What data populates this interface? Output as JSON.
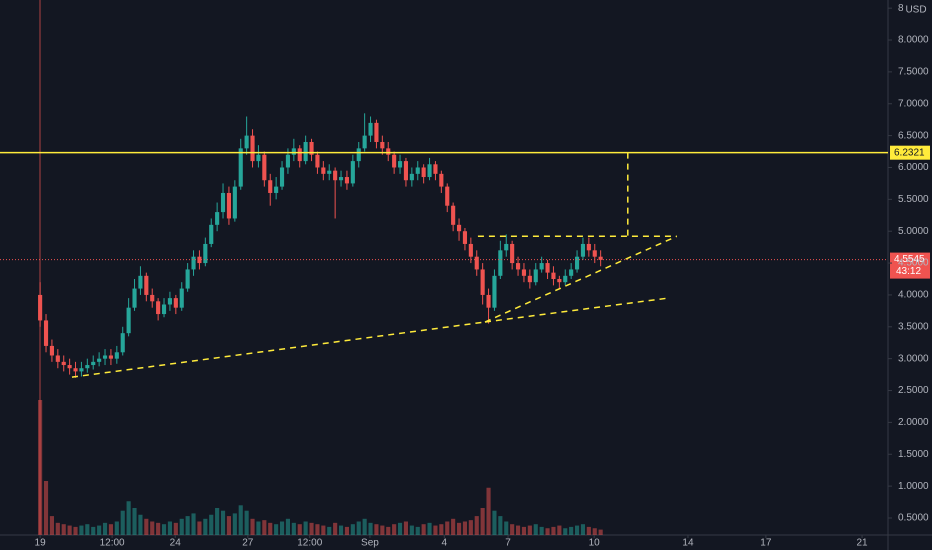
{
  "chart_data": {
    "type": "candlestick",
    "currency": "USD",
    "xlim": [
      -6.8,
      143.7
    ],
    "xticks": [
      {
        "value": 0,
        "label": "19"
      },
      {
        "value": 12.2,
        "label": "12:00"
      },
      {
        "value": 22.9,
        "label": "24"
      },
      {
        "value": 35.2,
        "label": "27"
      },
      {
        "value": 45.7,
        "label": "12:00"
      },
      {
        "value": 55.9,
        "label": "Sep"
      },
      {
        "value": 68.5,
        "label": "4"
      },
      {
        "value": 79.3,
        "label": "7"
      },
      {
        "value": 93.9,
        "label": "10"
      },
      {
        "value": 109.8,
        "label": "14"
      },
      {
        "value": 123.0,
        "label": "17"
      },
      {
        "value": 139.3,
        "label": "21"
      }
    ],
    "ylim": [
      0.233,
      8.628
    ],
    "yticks": [
      {
        "value": 0.5,
        "label": "0.5000"
      },
      {
        "value": 1.0,
        "label": "1.0000"
      },
      {
        "value": 1.5,
        "label": "1.5000"
      },
      {
        "value": 2.0,
        "label": "2.0000"
      },
      {
        "value": 2.5,
        "label": "2.5000"
      },
      {
        "value": 3.0,
        "label": "3.0000"
      },
      {
        "value": 3.5,
        "label": "3.5000"
      },
      {
        "value": 4.0,
        "label": "4.0000"
      },
      {
        "value": 4.5,
        "label": "4.5000"
      },
      {
        "value": 5.0,
        "label": "5.0000"
      },
      {
        "value": 5.5,
        "label": "5.5000"
      },
      {
        "value": 6.0,
        "label": "6.0000"
      },
      {
        "value": 6.5,
        "label": "6.5000"
      },
      {
        "value": 7.0,
        "label": "7.0000"
      },
      {
        "value": 7.5,
        "label": "7.5000"
      },
      {
        "value": 8.0,
        "label": "8.0000"
      },
      {
        "value": 8.5,
        "label": "8"
      }
    ],
    "up_color": "#26a69a",
    "down_color": "#ef5350",
    "open": [
      4.0,
      3.6,
      3.2,
      3.05,
      2.95,
      2.9,
      2.85,
      2.8,
      2.85,
      2.9,
      2.95,
      3.0,
      3.05,
      3.0,
      3.1,
      3.4,
      3.8,
      4.1,
      4.3,
      4.0,
      3.9,
      3.7,
      3.85,
      3.95,
      3.8,
      4.1,
      4.4,
      4.6,
      4.5,
      4.8,
      5.1,
      5.3,
      5.6,
      5.2,
      5.7,
      6.3,
      6.5,
      6.1,
      6.2,
      5.8,
      5.6,
      5.7,
      6.0,
      6.2,
      6.3,
      6.1,
      6.4,
      6.2,
      6.0,
      5.9,
      5.95,
      5.8,
      5.85,
      5.75,
      6.1,
      6.3,
      6.5,
      6.7,
      6.4,
      6.3,
      6.2,
      6.0,
      6.1,
      5.8,
      5.9,
      6.0,
      5.85,
      6.05,
      5.9,
      5.7,
      5.4,
      5.1,
      5.0,
      4.8,
      4.6,
      4.4,
      4.0,
      3.8,
      4.3,
      4.7,
      4.8,
      4.5,
      4.4,
      4.3,
      4.2,
      4.4,
      4.5,
      4.35,
      4.25,
      4.2,
      4.3,
      4.4,
      4.6,
      4.8,
      4.7,
      4.6
    ],
    "high": [
      4.2,
      3.7,
      3.3,
      3.15,
      3.05,
      3.0,
      2.95,
      2.95,
      3.0,
      3.05,
      3.1,
      3.15,
      3.15,
      3.2,
      3.5,
      3.95,
      4.25,
      4.45,
      4.35,
      4.1,
      3.95,
      3.95,
      4.05,
      4.0,
      4.2,
      4.5,
      4.7,
      4.7,
      4.9,
      5.2,
      5.45,
      5.75,
      5.7,
      5.8,
      6.45,
      6.8,
      6.6,
      6.35,
      6.25,
      5.9,
      5.85,
      6.1,
      6.3,
      6.45,
      6.35,
      6.5,
      6.45,
      6.25,
      6.1,
      6.05,
      6.0,
      5.95,
      5.95,
      6.2,
      6.4,
      6.85,
      6.8,
      6.75,
      6.5,
      6.4,
      6.25,
      6.2,
      6.15,
      6.0,
      6.1,
      6.05,
      6.15,
      6.1,
      5.95,
      5.75,
      5.45,
      5.2,
      5.05,
      4.9,
      4.7,
      4.5,
      4.1,
      4.4,
      4.85,
      4.95,
      4.85,
      4.6,
      4.5,
      4.4,
      4.5,
      4.6,
      4.55,
      4.45,
      4.3,
      4.4,
      4.5,
      4.7,
      4.9,
      4.9,
      4.8,
      4.7
    ],
    "low": [
      3.5,
      3.1,
      2.95,
      2.85,
      2.8,
      2.75,
      2.7,
      2.72,
      2.78,
      2.83,
      2.88,
      2.9,
      2.9,
      2.92,
      3.05,
      3.35,
      3.75,
      4.0,
      3.9,
      3.8,
      3.6,
      3.65,
      3.75,
      3.7,
      3.75,
      4.05,
      4.3,
      4.4,
      4.45,
      4.75,
      5.0,
      5.2,
      5.1,
      5.15,
      5.65,
      6.2,
      6.0,
      6.0,
      5.7,
      5.4,
      5.5,
      5.65,
      5.9,
      6.1,
      6.0,
      6.05,
      6.1,
      5.9,
      5.8,
      5.8,
      5.2,
      5.7,
      5.65,
      5.7,
      6.0,
      6.25,
      6.4,
      6.3,
      6.2,
      6.1,
      5.9,
      5.9,
      5.7,
      5.7,
      5.8,
      5.75,
      5.8,
      5.8,
      5.6,
      5.3,
      5.0,
      4.85,
      4.7,
      4.5,
      4.3,
      3.85,
      3.55,
      3.75,
      4.25,
      4.6,
      4.4,
      4.3,
      4.2,
      4.1,
      4.15,
      4.35,
      4.25,
      4.15,
      4.1,
      4.15,
      4.25,
      4.35,
      4.55,
      4.6,
      4.5,
      4.45
    ],
    "close": [
      3.6,
      3.2,
      3.05,
      2.95,
      2.9,
      2.85,
      2.8,
      2.85,
      2.9,
      2.95,
      3.0,
      3.05,
      3.0,
      3.1,
      3.4,
      3.8,
      4.1,
      4.3,
      4.0,
      3.9,
      3.7,
      3.85,
      3.95,
      3.8,
      4.1,
      4.4,
      4.6,
      4.5,
      4.8,
      5.1,
      5.3,
      5.6,
      5.2,
      5.7,
      6.3,
      6.5,
      6.1,
      6.2,
      5.8,
      5.6,
      5.7,
      6.0,
      6.2,
      6.3,
      6.1,
      6.4,
      6.2,
      6.0,
      5.9,
      5.95,
      5.8,
      5.85,
      5.75,
      6.1,
      6.3,
      6.5,
      6.7,
      6.4,
      6.3,
      6.2,
      6.0,
      6.1,
      5.8,
      5.9,
      6.0,
      5.85,
      6.05,
      5.9,
      5.7,
      5.4,
      5.1,
      5.0,
      4.8,
      4.6,
      4.4,
      4.0,
      3.8,
      4.3,
      4.7,
      4.8,
      4.5,
      4.4,
      4.3,
      4.2,
      4.4,
      4.5,
      4.35,
      4.25,
      4.2,
      4.3,
      4.4,
      4.6,
      4.8,
      4.7,
      4.6,
      4.55
    ],
    "volume": [
      100,
      40,
      14,
      9,
      8,
      7,
      6,
      7,
      8,
      6,
      7,
      9,
      8,
      10,
      18,
      25,
      20,
      15,
      12,
      10,
      9,
      8,
      10,
      9,
      12,
      14,
      16,
      10,
      12,
      15,
      20,
      18,
      14,
      16,
      22,
      18,
      12,
      10,
      11,
      9,
      8,
      10,
      12,
      9,
      8,
      10,
      9,
      8,
      7,
      6,
      9,
      7,
      6,
      8,
      10,
      12,
      9,
      8,
      7,
      6,
      8,
      9,
      10,
      7,
      6,
      8,
      9,
      7,
      8,
      10,
      12,
      9,
      10,
      11,
      14,
      20,
      35,
      18,
      14,
      10,
      8,
      7,
      6,
      7,
      8,
      6,
      5,
      6,
      7,
      5,
      6,
      7,
      8,
      6,
      5,
      4
    ],
    "volume_lim": [
      0,
      100
    ],
    "price_line": {
      "value": 4.5545,
      "label": "4.5545",
      "countdown": "43:12"
    },
    "horizontal_line": {
      "value": 6.2321,
      "label": "6.2321"
    },
    "drawings": [
      {
        "x": [
          5.4,
          75.4
        ],
        "y": [
          2.71,
          3.575
        ]
      },
      {
        "x": [
          75.4,
          106.4
        ],
        "y": [
          3.575,
          3.95
        ]
      },
      {
        "x": [
          75.4,
          107.9
        ],
        "y": [
          3.575,
          4.92
        ]
      },
      {
        "x": [
          74.2,
          107.9
        ],
        "y": [
          4.92,
          4.92
        ]
      },
      {
        "x": [
          99.6,
          99.6
        ],
        "y": [
          6.2321,
          4.92
        ]
      }
    ]
  }
}
